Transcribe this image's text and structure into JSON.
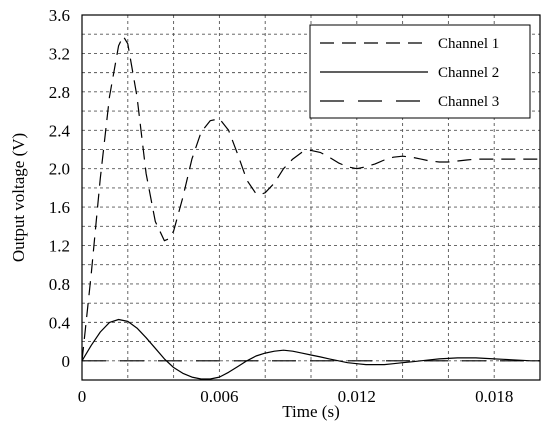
{
  "chart_data": {
    "type": "line",
    "xlabel": "Time (s)",
    "ylabel": "Output voltage (V)",
    "xlim": [
      0,
      0.02
    ],
    "ylim": [
      -0.2,
      3.6
    ],
    "xgrid": [
      0,
      0.002,
      0.004,
      0.006,
      0.008,
      0.01,
      0.012,
      0.014,
      0.016,
      0.018,
      0.02
    ],
    "ygrid": [
      -0.2,
      0,
      0.2,
      0.4,
      0.6,
      0.8,
      1.0,
      1.2,
      1.4,
      1.6,
      1.8,
      2.0,
      2.2,
      2.4,
      2.6,
      2.8,
      3.0,
      3.2,
      3.4,
      3.6
    ],
    "xticks": [
      {
        "value": 0,
        "label": "0"
      },
      {
        "value": 0.006,
        "label": "0.006"
      },
      {
        "value": 0.012,
        "label": "0.012"
      },
      {
        "value": 0.018,
        "label": "0.018"
      }
    ],
    "yticks": [
      {
        "value": 0,
        "label": "0"
      },
      {
        "value": 0.4,
        "label": "0.4"
      },
      {
        "value": 0.8,
        "label": "0.8"
      },
      {
        "value": 1.2,
        "label": "1.2"
      },
      {
        "value": 1.6,
        "label": "1.6"
      },
      {
        "value": 2.0,
        "label": "2.0"
      },
      {
        "value": 2.4,
        "label": "2.4"
      },
      {
        "value": 2.8,
        "label": "2.8"
      },
      {
        "value": 3.2,
        "label": "3.2"
      },
      {
        "value": 3.6,
        "label": "3.6"
      }
    ],
    "grid": true,
    "legend_position": "top-right",
    "series": [
      {
        "name": "Channel 1",
        "style": "dashed",
        "color": "#000000",
        "x": [
          0,
          0.0004,
          0.0008,
          0.0012,
          0.0016,
          0.0018,
          0.002,
          0.0024,
          0.0028,
          0.0032,
          0.0036,
          0.0038,
          0.004,
          0.0044,
          0.0048,
          0.0052,
          0.0056,
          0.006,
          0.0064,
          0.0068,
          0.0072,
          0.0076,
          0.0078,
          0.008,
          0.0084,
          0.0088,
          0.0092,
          0.0096,
          0.01,
          0.0104,
          0.0108,
          0.0112,
          0.0116,
          0.012,
          0.0124,
          0.0128,
          0.0132,
          0.0136,
          0.014,
          0.0144,
          0.0148,
          0.0152,
          0.0156,
          0.016,
          0.0164,
          0.0168,
          0.0172,
          0.0176,
          0.018,
          0.0184,
          0.0188,
          0.0192,
          0.0196,
          0.02
        ],
        "values": [
          0,
          0.9,
          1.9,
          2.75,
          3.28,
          3.38,
          3.3,
          2.75,
          1.95,
          1.45,
          1.25,
          1.27,
          1.35,
          1.7,
          2.1,
          2.38,
          2.5,
          2.52,
          2.4,
          2.15,
          1.88,
          1.74,
          1.73,
          1.75,
          1.85,
          2.0,
          2.1,
          2.17,
          2.19,
          2.17,
          2.12,
          2.06,
          2.02,
          2.0,
          2.02,
          2.05,
          2.09,
          2.12,
          2.13,
          2.12,
          2.1,
          2.08,
          2.07,
          2.07,
          2.08,
          2.09,
          2.1,
          2.1,
          2.1,
          2.1,
          2.1,
          2.1,
          2.1,
          2.1
        ]
      },
      {
        "name": "Channel 2",
        "style": "solid",
        "color": "#000000",
        "x": [
          0,
          0.0004,
          0.0008,
          0.0012,
          0.0016,
          0.002,
          0.0024,
          0.0028,
          0.0032,
          0.0036,
          0.004,
          0.0044,
          0.0048,
          0.0052,
          0.0056,
          0.006,
          0.0064,
          0.0068,
          0.0072,
          0.0076,
          0.008,
          0.0084,
          0.0088,
          0.0092,
          0.0096,
          0.01,
          0.0104,
          0.0108,
          0.0112,
          0.0116,
          0.012,
          0.0124,
          0.0128,
          0.0132,
          0.0136,
          0.014,
          0.0144,
          0.0148,
          0.0152,
          0.0156,
          0.016,
          0.0164,
          0.0168,
          0.0172,
          0.0176,
          0.018,
          0.0184,
          0.0188,
          0.0192,
          0.0196,
          0.02
        ],
        "values": [
          0,
          0.16,
          0.3,
          0.4,
          0.43,
          0.41,
          0.34,
          0.24,
          0.13,
          0.02,
          -0.07,
          -0.13,
          -0.17,
          -0.19,
          -0.19,
          -0.17,
          -0.12,
          -0.06,
          0,
          0.05,
          0.08,
          0.1,
          0.11,
          0.1,
          0.08,
          0.06,
          0.04,
          0.02,
          0,
          -0.02,
          -0.03,
          -0.04,
          -0.04,
          -0.04,
          -0.03,
          -0.02,
          -0.01,
          0,
          0.01,
          0.02,
          0.025,
          0.03,
          0.03,
          0.03,
          0.025,
          0.02,
          0.015,
          0.01,
          0.005,
          0,
          0
        ]
      },
      {
        "name": "Channel 3",
        "style": "longdash",
        "color": "#000000",
        "x": [
          0,
          0.02
        ],
        "values": [
          0,
          0
        ]
      }
    ]
  }
}
